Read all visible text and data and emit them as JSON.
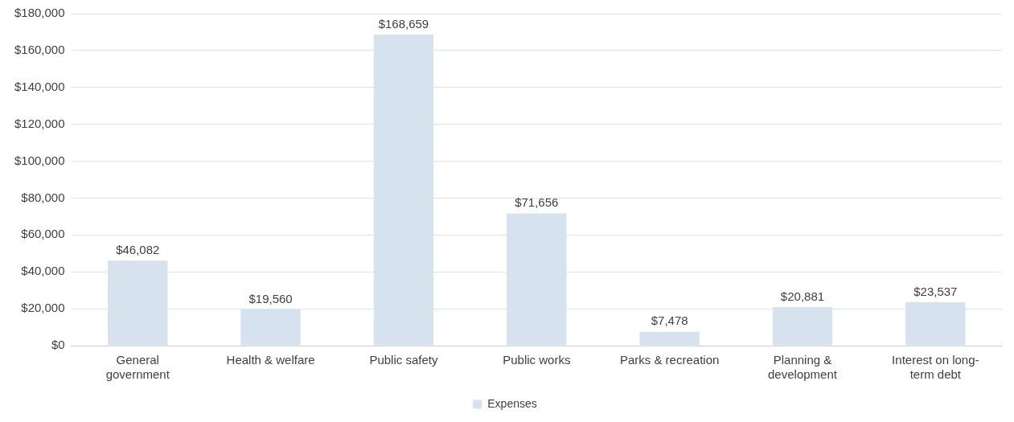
{
  "chart_data": {
    "type": "bar",
    "categories": [
      "General government",
      "Health & welfare",
      "Public safety",
      "Public works",
      "Parks & recreation",
      "Planning & development",
      "Interest on long-term debt"
    ],
    "series": [
      {
        "name": "Expenses",
        "color": "#d6e2ed",
        "values": [
          46082,
          19560,
          168659,
          71656,
          7478,
          20881,
          23537
        ],
        "value_labels": [
          "$46,082",
          "$19,560",
          "$168,659",
          "$71,656",
          "$7,478",
          "$20,881",
          "$23,537"
        ]
      }
    ],
    "ylim": [
      0,
      180000
    ],
    "yticks": [
      {
        "value": 0,
        "label": "$0"
      },
      {
        "value": 20000,
        "label": "$20,000"
      },
      {
        "value": 40000,
        "label": "$40,000"
      },
      {
        "value": 60000,
        "label": "$60,000"
      },
      {
        "value": 80000,
        "label": "$80,000"
      },
      {
        "value": 100000,
        "label": "$100,000"
      },
      {
        "value": 120000,
        "label": "$120,000"
      },
      {
        "value": 140000,
        "label": "$140,000"
      },
      {
        "value": 160000,
        "label": "$160,000"
      },
      {
        "value": 180000,
        "label": "$180,000"
      }
    ],
    "grid": "y",
    "legend": "bottom"
  }
}
